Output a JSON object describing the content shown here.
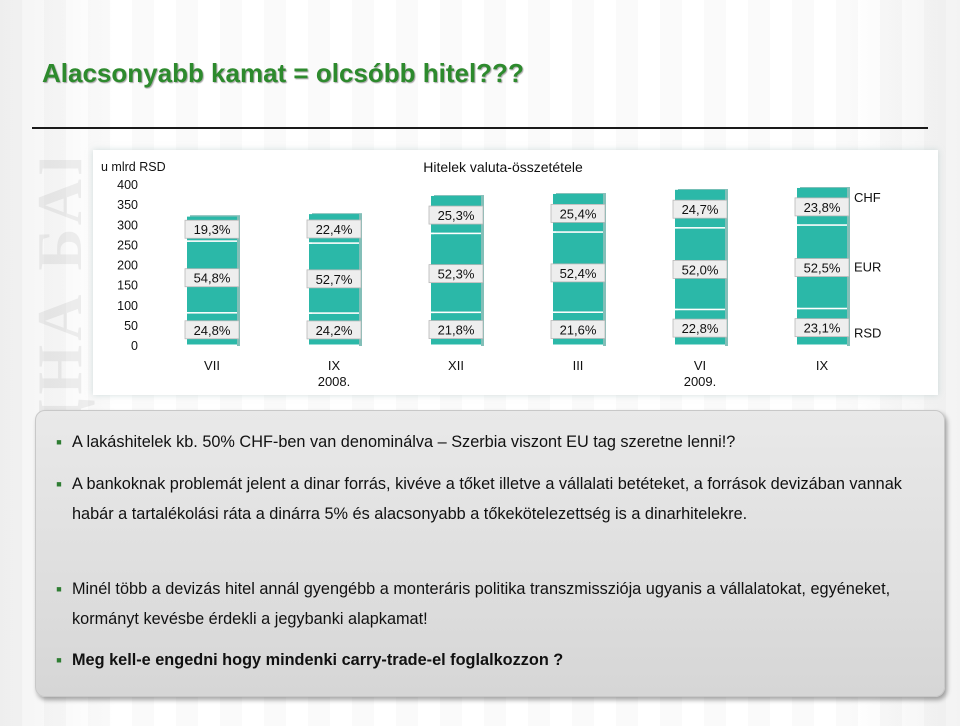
{
  "slide": {
    "title": "Alacsonyabb kamat = olcsóbb hitel???"
  },
  "chart_data": {
    "type": "bar",
    "title": "Hitelek valuta-összetétele",
    "ylabel": "u mlrd  RSD",
    "ylim": [
      0,
      400
    ],
    "yticks": [
      0,
      50,
      100,
      150,
      200,
      250,
      300,
      350,
      400
    ],
    "categories": [
      {
        "label": "VII",
        "year": ""
      },
      {
        "label": "IX",
        "year": "2008."
      },
      {
        "label": "XII",
        "year": ""
      },
      {
        "label": "III",
        "year": ""
      },
      {
        "label": "VI",
        "year": "2009."
      },
      {
        "label": "IX",
        "year": ""
      }
    ],
    "stacked": true,
    "series": [
      {
        "name": "RSD",
        "color": "#2bb8a8",
        "labels": [
          "24,8%",
          "24,2%",
          "21,8%",
          "21,6%",
          "22,8%",
          "23,1%"
        ],
        "shares": [
          24.8,
          24.2,
          21.8,
          21.6,
          22.8,
          23.1
        ]
      },
      {
        "name": "EUR",
        "color": "#2bb8a8",
        "labels": [
          "54,8%",
          "52,7%",
          "52,3%",
          "52,4%",
          "52,0%",
          "52,5%"
        ],
        "shares": [
          54.8,
          52.7,
          52.3,
          52.4,
          52.0,
          52.5
        ]
      },
      {
        "name": "CHF",
        "color": "#2bb8a8",
        "labels": [
          "19,3%",
          "22,4%",
          "25,3%",
          "25,4%",
          "24,7%",
          "23,8%"
        ],
        "shares": [
          19.3,
          22.4,
          25.3,
          25.4,
          24.7,
          23.8
        ]
      }
    ],
    "totals": [
      325,
      330,
      375,
      380,
      390,
      395
    ],
    "grid": false,
    "legend": "right"
  },
  "bullets": [
    {
      "text": "A lakáshitelek kb. 50% CHF-ben van denominálva – Szerbia viszont EU tag szeretne lenni!?"
    },
    {
      "text": "A bankoknak problemát jelent a dinar forrás, kivéve a tőket illetve a vállalati betéteket, a források devizában vannak habár a tartalékolási ráta a dinárra 5% és alacsonyabb a tőkekötelezettség is a dinarhitelekre."
    },
    {
      "text": "Minél több a devizás hitel annál gyengébb a monteráris politika transzmissziója ugyanis a vállalatokat, egyéneket, kormányt kevésbe érdekli a jegybanki alapkamat!"
    },
    {
      "text": "Meg kell-e engedni hogy mindenki carry-trade-el foglalkozzon ?"
    }
  ],
  "bullet_icon": "square-bullet-icon",
  "accent_color": "#2d8a2d"
}
